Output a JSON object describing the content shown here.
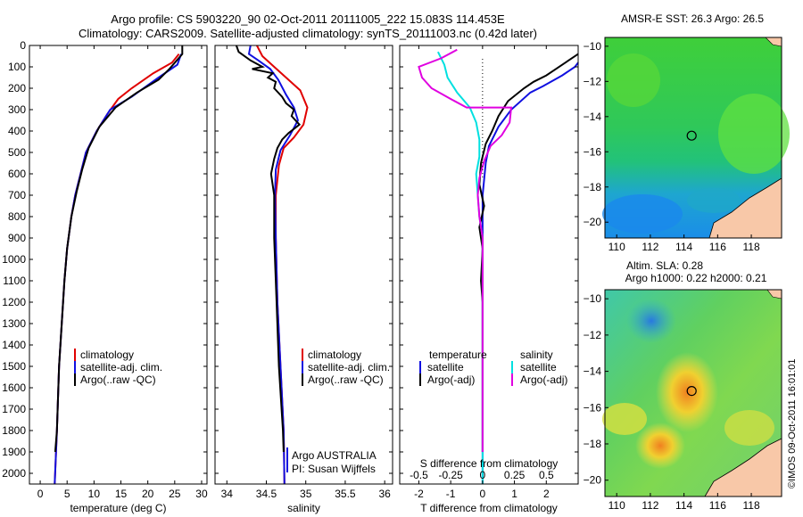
{
  "header": {
    "line1": "Argo profile: CS 5903220_90 02-Oct-2011 20111005_222 15.083S 114.453E",
    "line2": "Climatology: CARS2009. Satellite-adjusted climatology: synTS_20111003.nc (0.42d later)"
  },
  "depth_ticks": [
    0,
    100,
    200,
    300,
    400,
    500,
    600,
    700,
    800,
    900,
    1000,
    1100,
    1200,
    1300,
    1400,
    1500,
    1600,
    1700,
    1800,
    1900,
    2000
  ],
  "colors": {
    "climatology": "#e00000",
    "satellite": "#1010e0",
    "argo": "#000000",
    "sal_sat": "#00e0e0",
    "sal_argo": "#e000e0"
  },
  "chart_data": [
    {
      "type": "line",
      "id": "temperature",
      "xlabel": "temperature (deg C)",
      "xlim": [
        -2,
        31
      ],
      "ylim": [
        2050,
        0
      ],
      "xticks": [
        0,
        5,
        10,
        15,
        20,
        25,
        30
      ],
      "legend": [
        "climatology",
        "satellite-adj. clim.",
        "Argo(..raw -QC)"
      ],
      "series": [
        {
          "name": "climatology",
          "color": "#e00000",
          "points": [
            [
              25.8,
              40
            ],
            [
              24.5,
              80
            ],
            [
              21,
              130
            ],
            [
              17,
              200
            ],
            [
              14.5,
              250
            ],
            [
              12.5,
              320
            ],
            [
              10.5,
              400
            ],
            [
              8.5,
              500
            ],
            [
              7.5,
              600
            ],
            [
              6.5,
              700
            ],
            [
              5.8,
              800
            ],
            [
              5,
              950
            ],
            [
              4.5,
              1100
            ],
            [
              4,
              1300
            ],
            [
              3.5,
              1500
            ],
            [
              3.1,
              1800
            ],
            [
              2.7,
              2050
            ]
          ]
        },
        {
          "name": "satellite-adj. clim.",
          "color": "#1010e0",
          "points": [
            [
              26.2,
              40
            ],
            [
              25.5,
              90
            ],
            [
              22,
              150
            ],
            [
              17,
              240
            ],
            [
              13,
              300
            ],
            [
              10.5,
              400
            ],
            [
              8.5,
              500
            ],
            [
              7.5,
              600
            ],
            [
              6.5,
              700
            ],
            [
              5.8,
              800
            ],
            [
              5,
              950
            ],
            [
              4.5,
              1100
            ],
            [
              4,
              1300
            ],
            [
              3.5,
              1500
            ],
            [
              3.1,
              1800
            ],
            [
              2.7,
              2050
            ]
          ]
        },
        {
          "name": "Argo(..raw -QC)",
          "color": "#000000",
          "points": [
            [
              26.4,
              0
            ],
            [
              26.4,
              40
            ],
            [
              24,
              110
            ],
            [
              22,
              160
            ],
            [
              18,
              220
            ],
            [
              14,
              290
            ],
            [
              11,
              380
            ],
            [
              9,
              480
            ],
            [
              7.8,
              580
            ],
            [
              6.8,
              680
            ],
            [
              5.8,
              800
            ],
            [
              5,
              950
            ],
            [
              4.5,
              1100
            ],
            [
              4,
              1300
            ],
            [
              3.5,
              1500
            ],
            [
              3.1,
              1800
            ],
            [
              2.8,
              1900
            ]
          ]
        }
      ]
    },
    {
      "type": "line",
      "id": "salinity",
      "xlabel": "salinity",
      "xlim": [
        33.85,
        36.1
      ],
      "ylim": [
        2050,
        0
      ],
      "xticks": [
        34,
        34.5,
        35,
        35.5,
        36
      ],
      "legend": [
        "climatology",
        "satellite-adj. clim.",
        "Argo(..raw -QC)"
      ],
      "footer": [
        "Argo AUSTRALIA",
        "PI: Susan Wijffels"
      ],
      "series": [
        {
          "name": "climatology",
          "color": "#e00000",
          "points": [
            [
              34.38,
              0
            ],
            [
              34.45,
              50
            ],
            [
              34.6,
              100
            ],
            [
              34.75,
              150
            ],
            [
              34.93,
              210
            ],
            [
              35.02,
              290
            ],
            [
              34.97,
              370
            ],
            [
              34.85,
              430
            ],
            [
              34.72,
              480
            ],
            [
              34.66,
              560
            ],
            [
              34.62,
              700
            ],
            [
              34.62,
              900
            ],
            [
              34.64,
              1200
            ],
            [
              34.68,
              1500
            ],
            [
              34.72,
              1800
            ],
            [
              34.73,
              2050
            ]
          ]
        },
        {
          "name": "satellite-adj. clim.",
          "color": "#1010e0",
          "points": [
            [
              34.3,
              0
            ],
            [
              34.28,
              40
            ],
            [
              34.4,
              70
            ],
            [
              34.55,
              110
            ],
            [
              34.65,
              160
            ],
            [
              34.75,
              230
            ],
            [
              34.85,
              290
            ],
            [
              34.9,
              350
            ],
            [
              34.8,
              420
            ],
            [
              34.68,
              490
            ],
            [
              34.62,
              580
            ],
            [
              34.61,
              700
            ],
            [
              34.62,
              900
            ],
            [
              34.64,
              1200
            ],
            [
              34.68,
              1500
            ],
            [
              34.72,
              1800
            ],
            [
              34.73,
              2050
            ]
          ]
        },
        {
          "name": "Argo(..raw -QC)",
          "color": "#000000",
          "points": [
            [
              34.12,
              0
            ],
            [
              34.15,
              30
            ],
            [
              34.3,
              70
            ],
            [
              34.45,
              100
            ],
            [
              34.32,
              110
            ],
            [
              34.58,
              130
            ],
            [
              34.52,
              150
            ],
            [
              34.62,
              170
            ],
            [
              34.6,
              200
            ],
            [
              34.7,
              240
            ],
            [
              34.75,
              270
            ],
            [
              34.85,
              300
            ],
            [
              34.82,
              330
            ],
            [
              34.92,
              370
            ],
            [
              34.78,
              410
            ],
            [
              34.7,
              440
            ],
            [
              34.64,
              480
            ],
            [
              34.6,
              530
            ],
            [
              34.56,
              600
            ],
            [
              34.6,
              700
            ],
            [
              34.6,
              900
            ],
            [
              34.63,
              1200
            ],
            [
              34.66,
              1500
            ],
            [
              34.71,
              1800
            ],
            [
              34.72,
              1900
            ]
          ]
        }
      ]
    },
    {
      "type": "line",
      "id": "differences",
      "xlabel": "T difference from climatology",
      "xlabel_top": "S difference from climatology",
      "xlim": [
        -2.6,
        3
      ],
      "ylim": [
        2050,
        0
      ],
      "xticks": [
        -2,
        -1,
        0,
        1,
        2
      ],
      "s_tick_labels": [
        "-0.5",
        "-0.25",
        "0",
        "0.25",
        "0.5"
      ],
      "s_tick_positions": [
        -2,
        -1,
        0,
        1,
        2
      ],
      "legend_left_title": "temperature",
      "legend_right_title": "salinity",
      "legend": [
        "satellite",
        "Argo(-adj)",
        "satellite",
        "Argo(-adj)"
      ],
      "series": [
        {
          "name": "temperature satellite",
          "color": "#1010e0",
          "points": [
            [
              3,
              80
            ],
            [
              2.9,
              100
            ],
            [
              2.5,
              140
            ],
            [
              1.9,
              190
            ],
            [
              1.5,
              220
            ],
            [
              0.9,
              300
            ],
            [
              0.5,
              380
            ],
            [
              0.2,
              470
            ],
            [
              0.1,
              550
            ],
            [
              0,
              700
            ],
            [
              0,
              900
            ],
            [
              0,
              1200
            ],
            [
              0,
              1600
            ],
            [
              0,
              2050
            ]
          ]
        },
        {
          "name": "temperature Argo(-adj)",
          "color": "#000000",
          "points": [
            [
              3,
              40
            ],
            [
              2.3,
              110
            ],
            [
              2,
              140
            ],
            [
              1.6,
              170
            ],
            [
              1.3,
              200
            ],
            [
              0.8,
              260
            ],
            [
              0.5,
              330
            ],
            [
              0.3,
              400
            ],
            [
              0.1,
              460
            ],
            [
              -0.05,
              550
            ],
            [
              -0.1,
              650
            ],
            [
              0.05,
              750
            ],
            [
              -0.1,
              850
            ],
            [
              0,
              950
            ],
            [
              -0.05,
              1100
            ],
            [
              0,
              1200
            ],
            [
              0,
              1500
            ],
            [
              0,
              1900
            ]
          ]
        },
        {
          "name": "salinity satellite",
          "color": "#00e0e0",
          "points": [
            [
              -1.4,
              30
            ],
            [
              -1.2,
              90
            ],
            [
              -1.1,
              150
            ],
            [
              -0.8,
              220
            ],
            [
              -0.4,
              290
            ],
            [
              -0.2,
              360
            ],
            [
              -0.1,
              440
            ],
            [
              -0.1,
              520
            ],
            [
              -0.2,
              600
            ],
            [
              -0.15,
              700
            ],
            [
              -0.1,
              800
            ],
            [
              0,
              900
            ],
            [
              0,
              1200
            ],
            [
              0,
              2050
            ]
          ]
        },
        {
          "name": "salinity Argo(-adj)",
          "color": "#e000e0",
          "points": [
            [
              -0.8,
              20
            ],
            [
              -1.3,
              60
            ],
            [
              -2,
              100
            ],
            [
              -1.9,
              150
            ],
            [
              -1.6,
              200
            ],
            [
              -1,
              250
            ],
            [
              -0.5,
              290
            ],
            [
              0.9,
              290
            ],
            [
              0.85,
              360
            ],
            [
              0.6,
              420
            ],
            [
              0.25,
              470
            ],
            [
              0.05,
              540
            ],
            [
              -0.1,
              620
            ],
            [
              -0.15,
              700
            ],
            [
              -0.1,
              800
            ],
            [
              0,
              900
            ],
            [
              0,
              1200
            ],
            [
              0,
              1900
            ]
          ]
        }
      ]
    },
    {
      "type": "heatmap",
      "id": "sst_map",
      "title": "AMSR-E SST: 26.3 Argo: 26.5",
      "xlim": [
        109.3,
        119.8
      ],
      "ylim": [
        -20.9,
        -9.5
      ],
      "xticks": [
        110,
        112,
        114,
        116,
        118
      ],
      "yticks": [
        -10,
        -12,
        -14,
        -16,
        -18,
        -20
      ],
      "marker": [
        114.453,
        -15.083
      ]
    },
    {
      "type": "heatmap",
      "id": "sla_map",
      "title": "Altim. SLA: 0.28",
      "subtitle": "Argo h1000: 0.22 h2000: 0.21",
      "xlim": [
        109.3,
        119.8
      ],
      "ylim": [
        -20.9,
        -9.5
      ],
      "xticks": [
        110,
        112,
        114,
        116,
        118
      ],
      "yticks": [
        -10,
        -12,
        -14,
        -16,
        -18,
        -20
      ],
      "marker": [
        114.453,
        -15.083
      ]
    }
  ],
  "credit": "©IMOS 09-Oct-2011 16:01:01"
}
